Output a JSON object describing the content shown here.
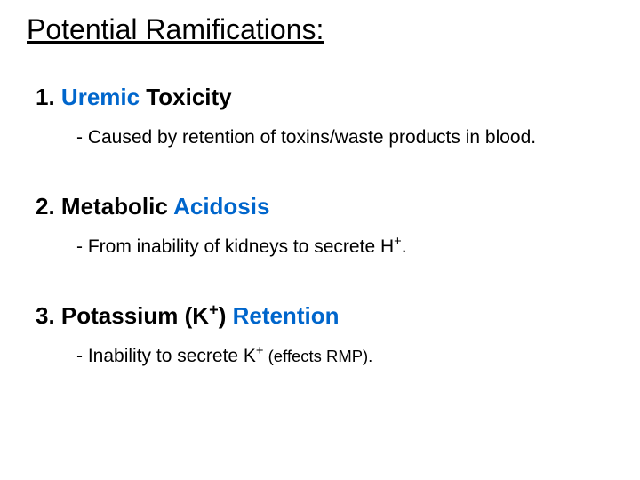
{
  "title": "Potential Ramifications:",
  "items": [
    {
      "number": "1.",
      "heading_highlight": "Uremic",
      "heading_rest": " Toxicity",
      "detail_prefix": "- Caused by retention of toxins/waste products in blood."
    },
    {
      "number": "2.",
      "heading_pre": " Metabolic ",
      "heading_highlight": "Acidosis",
      "detail_prefix": "- From inability of kidneys to secrete H",
      "detail_sup": "+",
      "detail_suffix": "."
    },
    {
      "number": "3.",
      "heading_pre": " Potassium (K",
      "heading_sup": "+",
      "heading_mid": ") ",
      "heading_highlight": "Retention",
      "detail_prefix": "- Inability to secrete K",
      "detail_sup": "+",
      "detail_small": " (effects RMP)."
    }
  ],
  "colors": {
    "highlight": "#0066cc",
    "text": "#000000",
    "background": "#ffffff"
  }
}
